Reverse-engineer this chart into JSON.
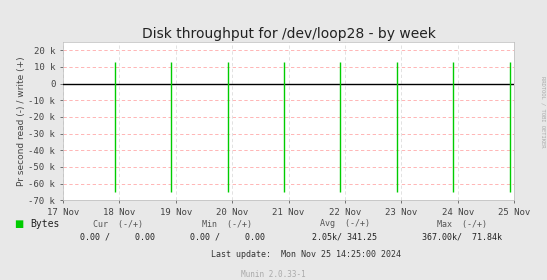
{
  "title": "Disk throughput for /dev/loop28 - by week",
  "ylabel": "Pr second read (-) / write (+)",
  "background_color": "#e8e8e8",
  "plot_bg_color": "#ffffff",
  "ylim": [
    -70000,
    25000
  ],
  "yticks": [
    -70000,
    -60000,
    -50000,
    -40000,
    -30000,
    -20000,
    -10000,
    0,
    10000,
    20000
  ],
  "ytick_labels": [
    "-70 k",
    "-60 k",
    "-50 k",
    "-40 k",
    "-30 k",
    "-20 k",
    "-10 k",
    "0",
    "10 k",
    "20 k"
  ],
  "x_start": 0,
  "x_end": 691200,
  "xtick_positions": [
    0,
    86400,
    172800,
    259200,
    345600,
    432000,
    518400,
    604800,
    691200
  ],
  "xtick_labels": [
    "17 Nov",
    "18 Nov",
    "19 Nov",
    "20 Nov",
    "21 Nov",
    "22 Nov",
    "23 Nov",
    "24 Nov",
    "25 Nov"
  ],
  "spike_x_fractions": [
    0.115,
    0.24,
    0.365,
    0.49,
    0.615,
    0.74,
    0.865,
    0.99
  ],
  "spike_tops": [
    13000,
    13000,
    13000,
    13000,
    13000,
    13000,
    13000,
    13000
  ],
  "spike_bottoms": [
    -65000,
    -65000,
    -65000,
    -65000,
    -65000,
    -65000,
    -65000,
    -65000
  ],
  "line_color": "#00cc00",
  "zero_line_color": "#000000",
  "grid_color": "#ffaaaa",
  "vgrid_color": "#dddddd",
  "legend_label": "Bytes",
  "legend_color": "#00cc00",
  "cur_label": "Cur  (-/+)",
  "cur_value": "0.00 /     0.00",
  "min_label": "Min  (-/+)",
  "min_value": "0.00 /     0.00",
  "avg_label": "Avg  (-/+)",
  "avg_value": "2.05k/ 341.25",
  "max_label": "Max  (-/+)",
  "max_value": "367.00k/  71.84k",
  "last_update": "Last update:  Mon Nov 25 14:25:00 2024",
  "munin_label": "Munin 2.0.33-1",
  "side_label": "RRDTOOL / TOBI OETIKER",
  "title_fontsize": 10,
  "axis_fontsize": 6.5,
  "legend_fontsize": 7,
  "small_fontsize": 6,
  "mono_font": "monospace"
}
